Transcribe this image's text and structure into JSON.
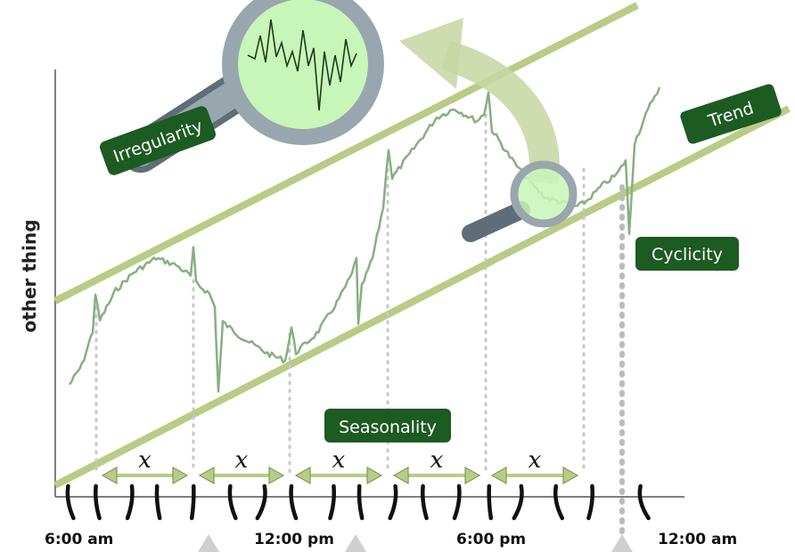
{
  "diagram": {
    "y_axis_label": "other thing",
    "labels": {
      "trend": "Trend",
      "irregularity": "Irregularity",
      "cyclicity": "Cyclicity",
      "seasonality": "Seasonality"
    },
    "period_marker": "x",
    "period_count": 5,
    "time_labels": [
      "6:00 am",
      "12:00 pm",
      "6:00 pm",
      "12:00 am"
    ],
    "colors": {
      "band": "#b9cc85",
      "series": "#86b07f",
      "label_bg": "#1c5b21",
      "lens_fill": "#c8f5b8",
      "lens_rim": "#98a6ad",
      "handle": "#5f6d76",
      "arrow": "#c7d6a1",
      "axis": "#555555",
      "divider": "#c8c8c8",
      "triangle": "#cfcfcf"
    }
  }
}
